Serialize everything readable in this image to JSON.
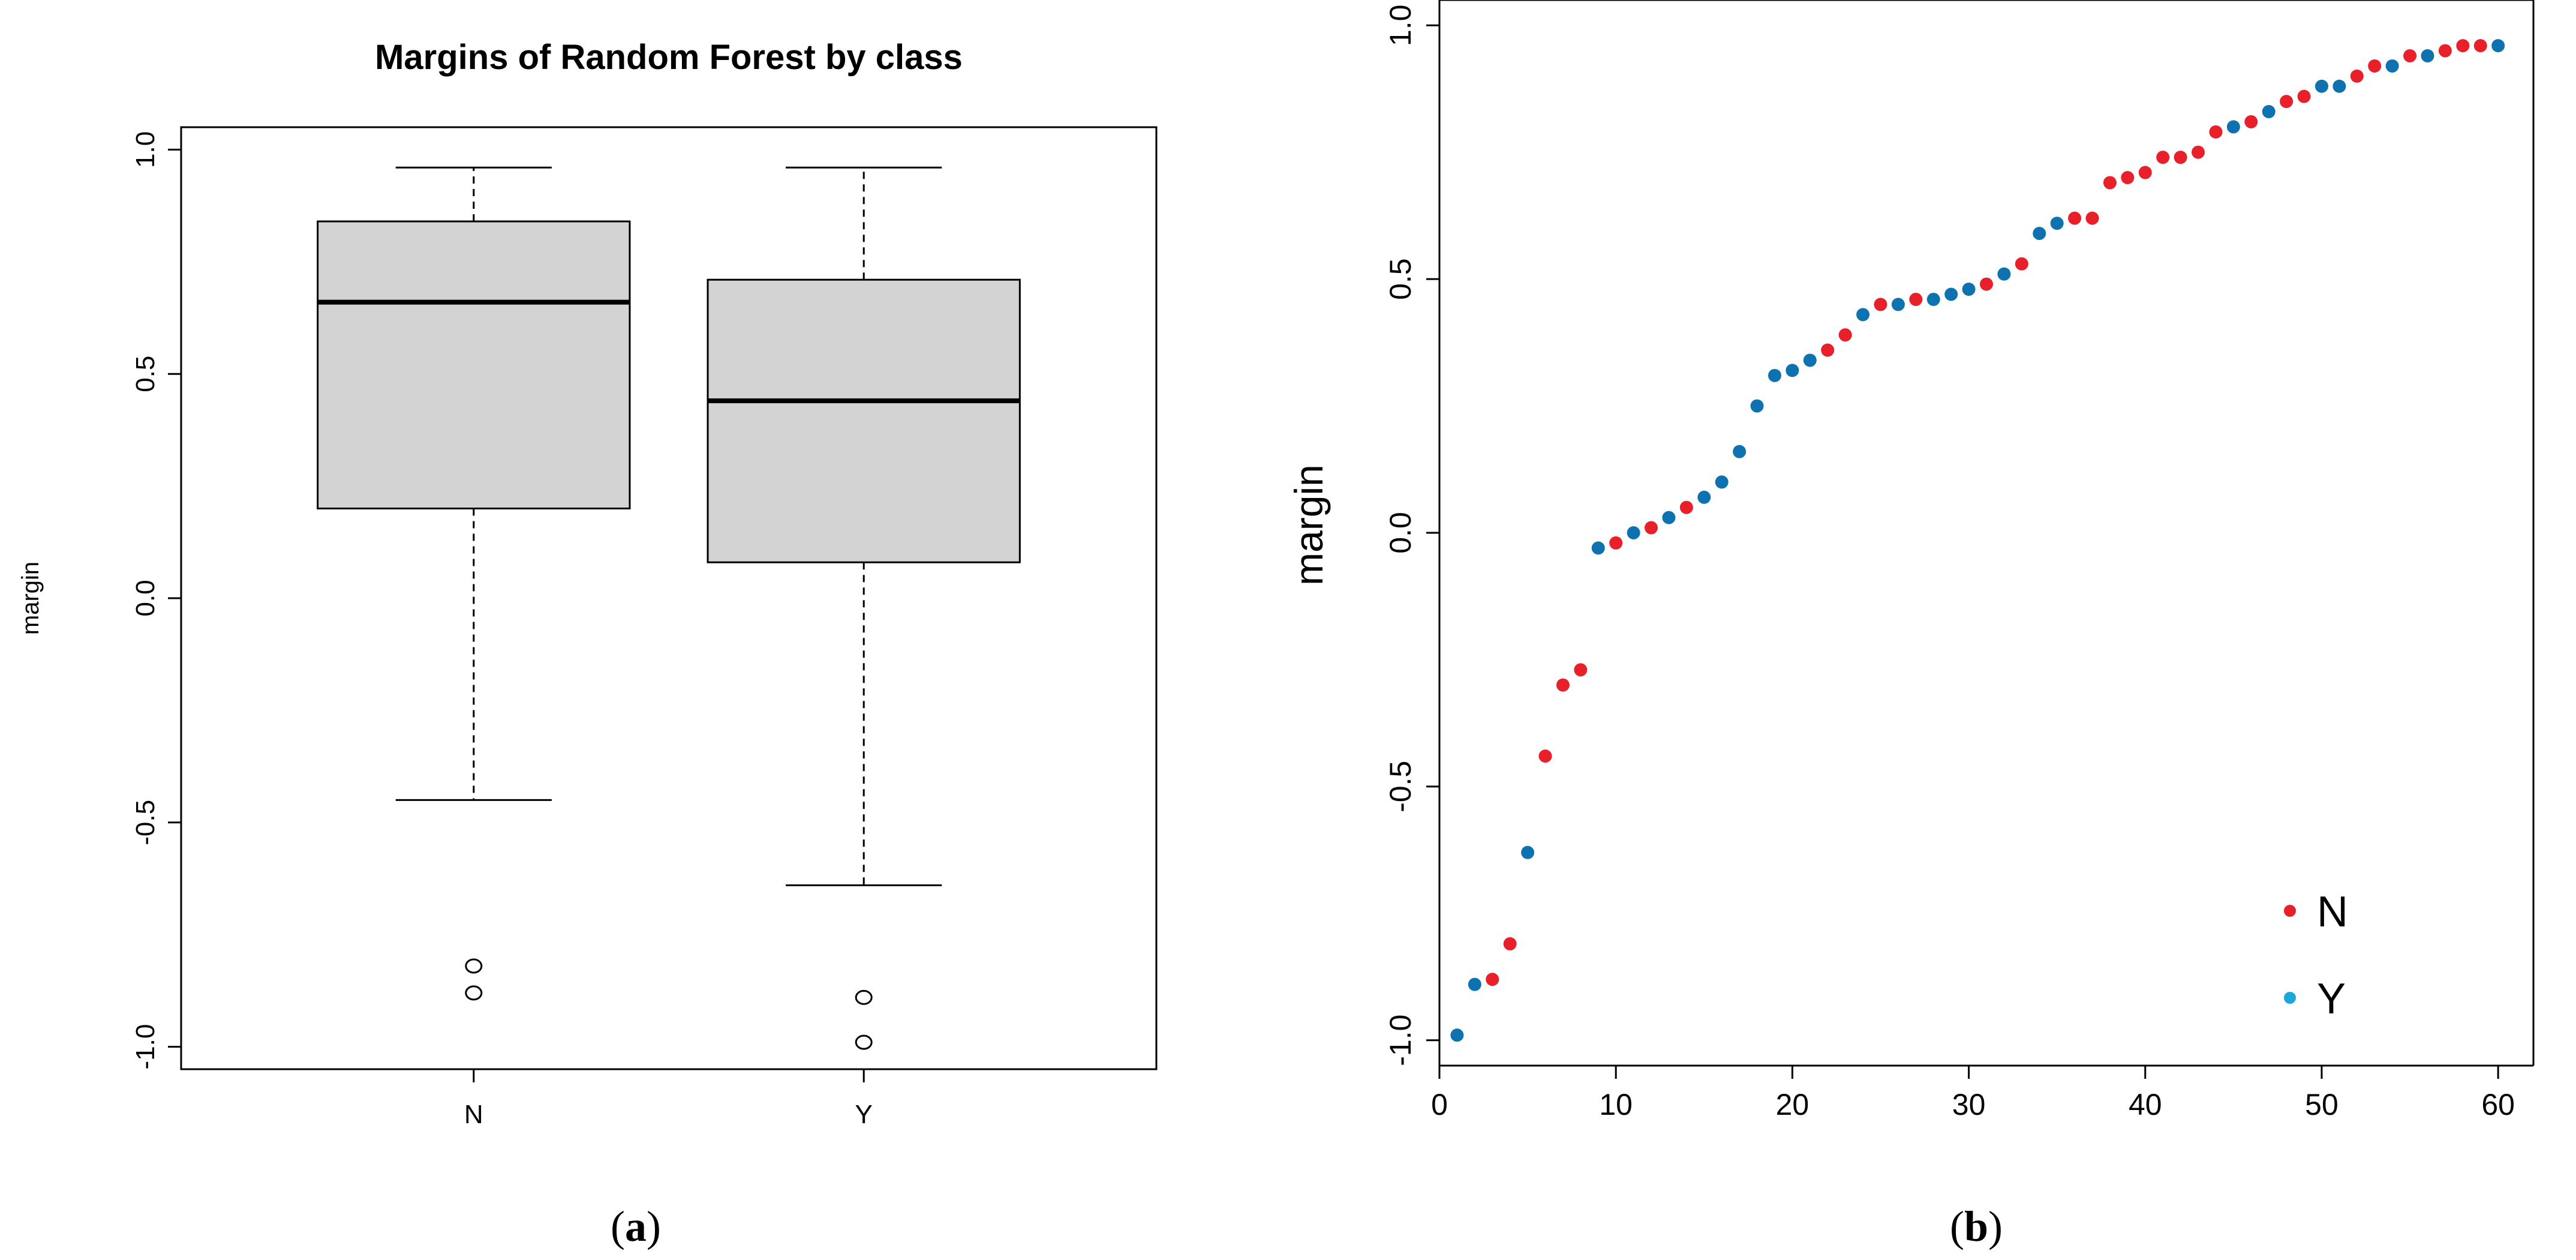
{
  "chart_data": [
    {
      "type": "box",
      "panel_label": "a",
      "title": "Margins of Random Forest by class",
      "xlabel": "",
      "ylabel": "margin",
      "ylim": [
        -1.05,
        1.05
      ],
      "yticks": [
        -1.0,
        -0.5,
        0.0,
        0.5,
        1.0
      ],
      "ytick_labels": [
        "-1.0",
        "-0.5",
        "0.0",
        "0.5",
        "1.0"
      ],
      "categories": [
        "N",
        "Y"
      ],
      "boxes": [
        {
          "name": "N",
          "whisker_low": -0.45,
          "q1": 0.2,
          "median": 0.66,
          "q3": 0.84,
          "whisker_high": 0.96,
          "outliers": [
            -0.82,
            -0.88
          ]
        },
        {
          "name": "Y",
          "whisker_low": -0.64,
          "q1": 0.08,
          "median": 0.44,
          "q3": 0.71,
          "whisker_high": 0.96,
          "outliers": [
            -0.89,
            -0.99
          ]
        }
      ],
      "box_fill": "#d3d3d3"
    },
    {
      "type": "scatter",
      "panel_label": "b",
      "xlabel": "",
      "ylabel": "margin",
      "xlim": [
        0,
        62
      ],
      "ylim": [
        -1.05,
        1.05
      ],
      "xticks": [
        0,
        10,
        20,
        30,
        40,
        50,
        60
      ],
      "xtick_labels": [
        "0",
        "10",
        "20",
        "30",
        "40",
        "50",
        "60"
      ],
      "yticks": [
        -1.0,
        -0.5,
        0.0,
        0.5,
        1.0
      ],
      "ytick_labels": [
        "-1.0",
        "-0.5",
        "0.0",
        "0.5",
        "1.0"
      ],
      "legend": {
        "position": "bottom-right",
        "entries": [
          {
            "label": "N",
            "color": "#e8202a"
          },
          {
            "label": "Y",
            "color": "#1ba8d8"
          }
        ]
      },
      "colors": {
        "N": "#e8202a",
        "Y": "#0f72b0"
      },
      "points": [
        {
          "x": 1,
          "y": -0.99,
          "class": "Y"
        },
        {
          "x": 2,
          "y": -0.89,
          "class": "Y"
        },
        {
          "x": 3,
          "y": -0.88,
          "class": "N"
        },
        {
          "x": 4,
          "y": -0.81,
          "class": "N"
        },
        {
          "x": 5,
          "y": -0.63,
          "class": "Y"
        },
        {
          "x": 6,
          "y": -0.44,
          "class": "N"
        },
        {
          "x": 7,
          "y": -0.3,
          "class": "N"
        },
        {
          "x": 8,
          "y": -0.27,
          "class": "N"
        },
        {
          "x": 9,
          "y": -0.03,
          "class": "Y"
        },
        {
          "x": 10,
          "y": -0.02,
          "class": "N"
        },
        {
          "x": 11,
          "y": 0.0,
          "class": "Y"
        },
        {
          "x": 12,
          "y": 0.01,
          "class": "N"
        },
        {
          "x": 13,
          "y": 0.03,
          "class": "Y"
        },
        {
          "x": 14,
          "y": 0.05,
          "class": "N"
        },
        {
          "x": 15,
          "y": 0.07,
          "class": "Y"
        },
        {
          "x": 16,
          "y": 0.1,
          "class": "Y"
        },
        {
          "x": 17,
          "y": 0.16,
          "class": "Y"
        },
        {
          "x": 18,
          "y": 0.25,
          "class": "Y"
        },
        {
          "x": 19,
          "y": 0.31,
          "class": "Y"
        },
        {
          "x": 20,
          "y": 0.32,
          "class": "Y"
        },
        {
          "x": 21,
          "y": 0.34,
          "class": "Y"
        },
        {
          "x": 22,
          "y": 0.36,
          "class": "N"
        },
        {
          "x": 23,
          "y": 0.39,
          "class": "N"
        },
        {
          "x": 24,
          "y": 0.43,
          "class": "Y"
        },
        {
          "x": 25,
          "y": 0.45,
          "class": "N"
        },
        {
          "x": 26,
          "y": 0.45,
          "class": "Y"
        },
        {
          "x": 27,
          "y": 0.46,
          "class": "N"
        },
        {
          "x": 28,
          "y": 0.46,
          "class": "Y"
        },
        {
          "x": 29,
          "y": 0.47,
          "class": "Y"
        },
        {
          "x": 30,
          "y": 0.48,
          "class": "Y"
        },
        {
          "x": 31,
          "y": 0.49,
          "class": "N"
        },
        {
          "x": 32,
          "y": 0.51,
          "class": "Y"
        },
        {
          "x": 33,
          "y": 0.53,
          "class": "N"
        },
        {
          "x": 34,
          "y": 0.59,
          "class": "Y"
        },
        {
          "x": 35,
          "y": 0.61,
          "class": "Y"
        },
        {
          "x": 36,
          "y": 0.62,
          "class": "N"
        },
        {
          "x": 37,
          "y": 0.62,
          "class": "N"
        },
        {
          "x": 38,
          "y": 0.69,
          "class": "N"
        },
        {
          "x": 39,
          "y": 0.7,
          "class": "N"
        },
        {
          "x": 40,
          "y": 0.71,
          "class": "N"
        },
        {
          "x": 41,
          "y": 0.74,
          "class": "N"
        },
        {
          "x": 42,
          "y": 0.74,
          "class": "N"
        },
        {
          "x": 43,
          "y": 0.75,
          "class": "N"
        },
        {
          "x": 44,
          "y": 0.79,
          "class": "N"
        },
        {
          "x": 45,
          "y": 0.8,
          "class": "Y"
        },
        {
          "x": 46,
          "y": 0.81,
          "class": "N"
        },
        {
          "x": 47,
          "y": 0.83,
          "class": "Y"
        },
        {
          "x": 48,
          "y": 0.85,
          "class": "N"
        },
        {
          "x": 49,
          "y": 0.86,
          "class": "N"
        },
        {
          "x": 50,
          "y": 0.88,
          "class": "Y"
        },
        {
          "x": 51,
          "y": 0.88,
          "class": "Y"
        },
        {
          "x": 52,
          "y": 0.9,
          "class": "N"
        },
        {
          "x": 53,
          "y": 0.92,
          "class": "N"
        },
        {
          "x": 54,
          "y": 0.92,
          "class": "Y"
        },
        {
          "x": 55,
          "y": 0.94,
          "class": "N"
        },
        {
          "x": 56,
          "y": 0.94,
          "class": "Y"
        },
        {
          "x": 57,
          "y": 0.95,
          "class": "N"
        },
        {
          "x": 58,
          "y": 0.96,
          "class": "N"
        },
        {
          "x": 59,
          "y": 0.96,
          "class": "N"
        },
        {
          "x": 60,
          "y": 0.96,
          "class": "Y"
        }
      ]
    }
  ]
}
